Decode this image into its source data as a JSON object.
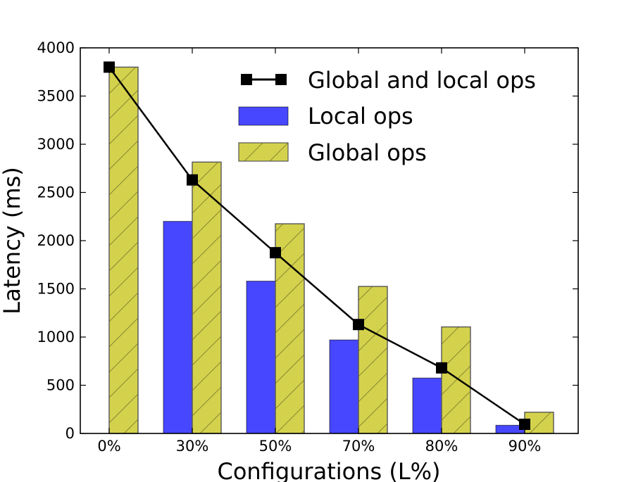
{
  "chart_data": {
    "type": "bar",
    "title": "",
    "xlabel": "Configurations (L%)",
    "ylabel": "Latency (ms)",
    "categories": [
      "0%",
      "30%",
      "50%",
      "70%",
      "80%",
      "90%"
    ],
    "ylim": [
      0,
      4000
    ],
    "yticks": [
      0,
      500,
      1000,
      1500,
      2000,
      2500,
      3000,
      3500,
      4000
    ],
    "grid": false,
    "legend_position": "top-right",
    "series": [
      {
        "name": "Local ops",
        "kind": "bar",
        "color": "#4747ff",
        "values": [
          0,
          2200,
          1580,
          970,
          575,
          85
        ]
      },
      {
        "name": "Global ops",
        "kind": "bar",
        "hatch": "diagonal",
        "color": "#d4d24c",
        "values": [
          3800,
          2815,
          2175,
          1525,
          1105,
          220
        ]
      },
      {
        "name": "Global and local ops",
        "kind": "line",
        "marker": "square",
        "color": "#000000",
        "values": [
          3800,
          2630,
          1875,
          1130,
          680,
          95
        ]
      }
    ]
  }
}
